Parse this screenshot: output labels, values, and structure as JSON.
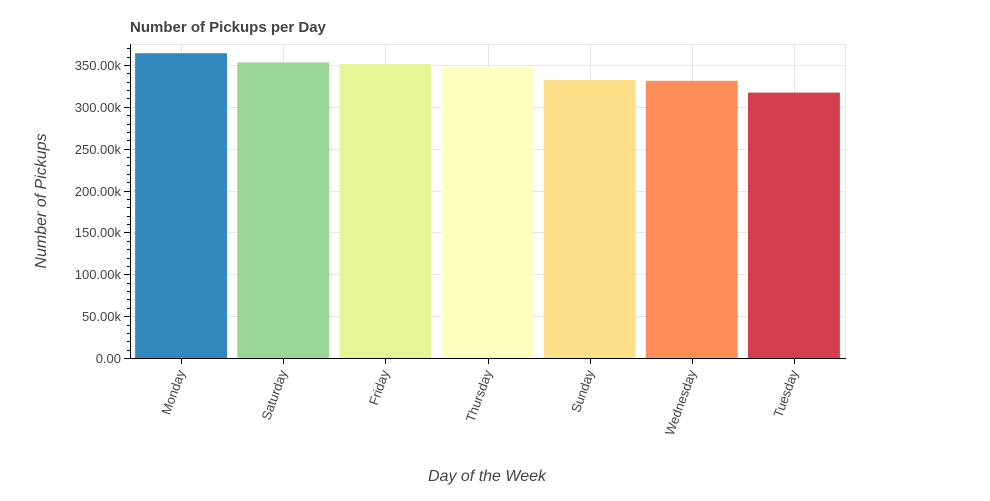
{
  "chart_data": {
    "type": "bar",
    "title": "Number of Pickups per Day",
    "xlabel": "Day of the Week",
    "ylabel": "Number of Pickups",
    "categories": [
      "Monday",
      "Saturday",
      "Friday",
      "Thursday",
      "Sunday",
      "Wednesday",
      "Tuesday"
    ],
    "values": [
      364000,
      353000,
      351000,
      348000,
      332000,
      331000,
      317000
    ],
    "colors": [
      "#3288bd",
      "#99d594",
      "#e6f598",
      "#ffffbf",
      "#fee08b",
      "#fc8d59",
      "#d53e4f"
    ],
    "ylim": [
      0,
      375000
    ],
    "yticks": [
      0,
      50000,
      100000,
      150000,
      200000,
      250000,
      300000,
      350000
    ],
    "ytick_labels": [
      "0.00",
      "50.00k",
      "100.00k",
      "150.00k",
      "200.00k",
      "250.00k",
      "300.00k",
      "350.00k"
    ],
    "grid": true,
    "legend": false
  }
}
